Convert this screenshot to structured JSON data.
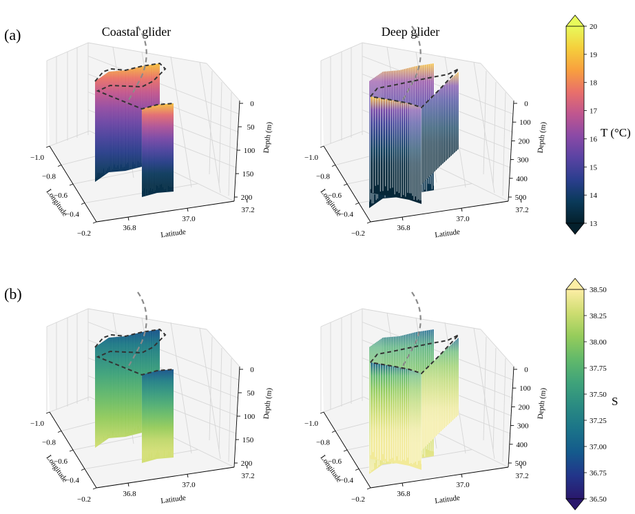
{
  "figure": {
    "panel_labels": [
      "(a)",
      "(b)"
    ],
    "titles": [
      "Coastal glider",
      "Deep glider"
    ]
  },
  "axes": {
    "longitude_label": "Longitude",
    "latitude_label": "Latitude",
    "depth_label": "Depth (m)",
    "longitude_ticks": [
      "−1.0",
      "−0.8",
      "−0.6",
      "−0.4",
      "−0.2"
    ],
    "latitude_ticks": [
      "36.8",
      "37.0",
      "37.2"
    ],
    "coastal_depth_ticks": [
      "0",
      "50",
      "100",
      "150",
      "200"
    ],
    "deep_depth_ticks": [
      "0",
      "100",
      "200",
      "300",
      "400",
      "500"
    ]
  },
  "colorbars": [
    {
      "label": "T (°C)",
      "ticks": [
        "13",
        "14",
        "15",
        "16",
        "17",
        "18",
        "19",
        "20"
      ],
      "range": [
        13,
        20
      ],
      "colormap": "thermal",
      "stops": [
        "#04202c",
        "#0a3a5a",
        "#2b3e8e",
        "#5a43a3",
        "#8b4aa6",
        "#c0568f",
        "#e9706a",
        "#f8a03e",
        "#f5cf3c",
        "#e8fa5b"
      ]
    },
    {
      "label": "S",
      "ticks": [
        "36.50",
        "36.75",
        "37.00",
        "37.25",
        "37.50",
        "37.75",
        "38.00",
        "38.25",
        "38.50"
      ],
      "range": [
        36.5,
        38.5
      ],
      "colormap": "haline",
      "stops": [
        "#2a186c",
        "#22358a",
        "#145a8c",
        "#1b7489",
        "#2a8b82",
        "#3fa37a",
        "#62b96a",
        "#96cc5b",
        "#cedd71",
        "#fdeea5"
      ]
    }
  ],
  "chart_data": [
    {
      "type": "scatter",
      "panel": "(a)",
      "title": "Coastal glider",
      "variable": "temperature",
      "xlabel": "Latitude",
      "ylabel": "Longitude",
      "zlabel": "Depth (m)",
      "xlim": [
        36.7,
        37.3
      ],
      "ylim": [
        -1.0,
        -0.2
      ],
      "zlim": [
        0,
        200
      ],
      "xticks": [
        36.8,
        37.0,
        37.2
      ],
      "yticks": [
        -1.0,
        -0.8,
        -0.6,
        -0.4,
        -0.2
      ],
      "zticks": [
        0,
        50,
        100,
        150,
        200
      ],
      "color_range": [
        13,
        20
      ],
      "surface_value": 19,
      "deep_value": 13.5
    },
    {
      "type": "scatter",
      "panel": "(a)",
      "title": "Deep glider",
      "variable": "temperature",
      "xlabel": "Latitude",
      "ylabel": "Longitude",
      "zlabel": "Depth (m)",
      "xlim": [
        36.7,
        37.3
      ],
      "ylim": [
        -1.0,
        -0.2
      ],
      "zlim": [
        0,
        500
      ],
      "xticks": [
        36.8,
        37.0,
        37.2
      ],
      "yticks": [
        -1.0,
        -0.8,
        -0.6,
        -0.4,
        -0.2
      ],
      "zticks": [
        0,
        100,
        200,
        300,
        400,
        500
      ],
      "color_range": [
        13,
        20
      ],
      "surface_value": 19,
      "deep_value": 13.2
    },
    {
      "type": "scatter",
      "panel": "(b)",
      "title": "Coastal glider",
      "variable": "salinity",
      "xlabel": "Latitude",
      "ylabel": "Longitude",
      "zlabel": "Depth (m)",
      "xlim": [
        36.7,
        37.3
      ],
      "ylim": [
        -1.0,
        -0.2
      ],
      "zlim": [
        0,
        200
      ],
      "xticks": [
        36.8,
        37.0,
        37.2
      ],
      "yticks": [
        -1.0,
        -0.8,
        -0.6,
        -0.4,
        -0.2
      ],
      "zticks": [
        0,
        50,
        100,
        150,
        200
      ],
      "color_range": [
        36.5,
        38.5
      ],
      "surface_value": 36.9,
      "deep_value": 38.3
    },
    {
      "type": "scatter",
      "panel": "(b)",
      "title": "Deep glider",
      "variable": "salinity",
      "xlabel": "Latitude",
      "ylabel": "Longitude",
      "zlabel": "Depth (m)",
      "xlim": [
        36.7,
        37.3
      ],
      "ylim": [
        -1.0,
        -0.2
      ],
      "zlim": [
        0,
        500
      ],
      "xticks": [
        36.8,
        37.0,
        37.2
      ],
      "yticks": [
        -1.0,
        -0.8,
        -0.6,
        -0.4,
        -0.2
      ],
      "zticks": [
        0,
        100,
        200,
        300,
        400,
        500
      ],
      "color_range": [
        36.5,
        38.5
      ],
      "surface_value": 37.0,
      "deep_value": 38.45
    }
  ]
}
